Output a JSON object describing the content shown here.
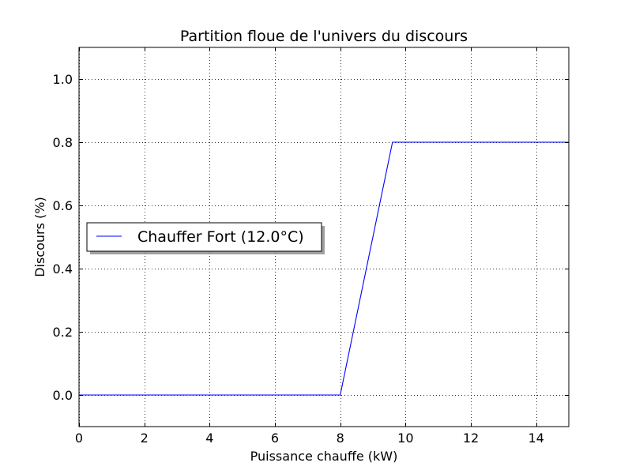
{
  "chart_data": {
    "type": "line",
    "title": "Partition floue de l'univers du discours",
    "xlabel": "Puissance chauffe (kW)",
    "ylabel": "Discours (%)",
    "xlim": [
      0,
      15
    ],
    "ylim": [
      -0.1,
      1.1
    ],
    "xticks": [
      0,
      2,
      4,
      6,
      8,
      10,
      12,
      14
    ],
    "xtick_labels": [
      "0",
      "2",
      "4",
      "6",
      "8",
      "10",
      "12",
      "14"
    ],
    "yticks": [
      0.0,
      0.2,
      0.4,
      0.6,
      0.8,
      1.0
    ],
    "ytick_labels": [
      "0.0",
      "0.2",
      "0.4",
      "0.6",
      "0.8",
      "1.0"
    ],
    "grid": true,
    "legend_position": "center-left",
    "series": [
      {
        "name": "Chauffer Fort (12.0°C)",
        "color": "#0000ff",
        "x": [
          0,
          8,
          9.6,
          15
        ],
        "y": [
          0,
          0,
          0.8,
          0.8
        ]
      }
    ]
  }
}
